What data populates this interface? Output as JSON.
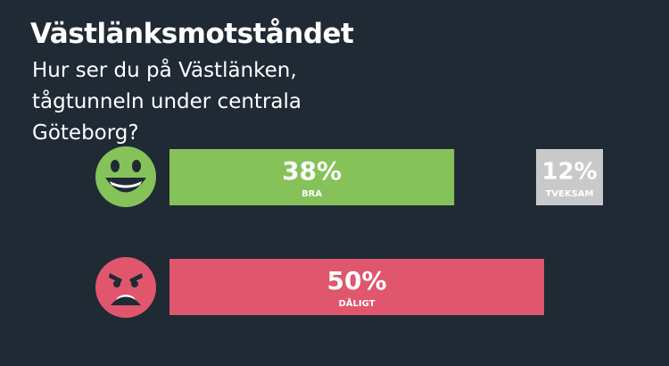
{
  "chart_data": {
    "type": "bar",
    "title": "Västlänksmotståndet",
    "subtitle": "Hur ser du på Västlänken, tågtunneln under centrala Göteborg?",
    "categories": [
      "BRA",
      "DÅLIGT"
    ],
    "values": [
      38,
      50
    ],
    "value_labels": [
      "38%",
      "50%"
    ],
    "colors": [
      "#85c25a",
      "#e0566d"
    ],
    "undecided": {
      "label": "TVEKSAM",
      "value": 12,
      "value_label": "12%",
      "color": "#c9c9c9"
    }
  }
}
